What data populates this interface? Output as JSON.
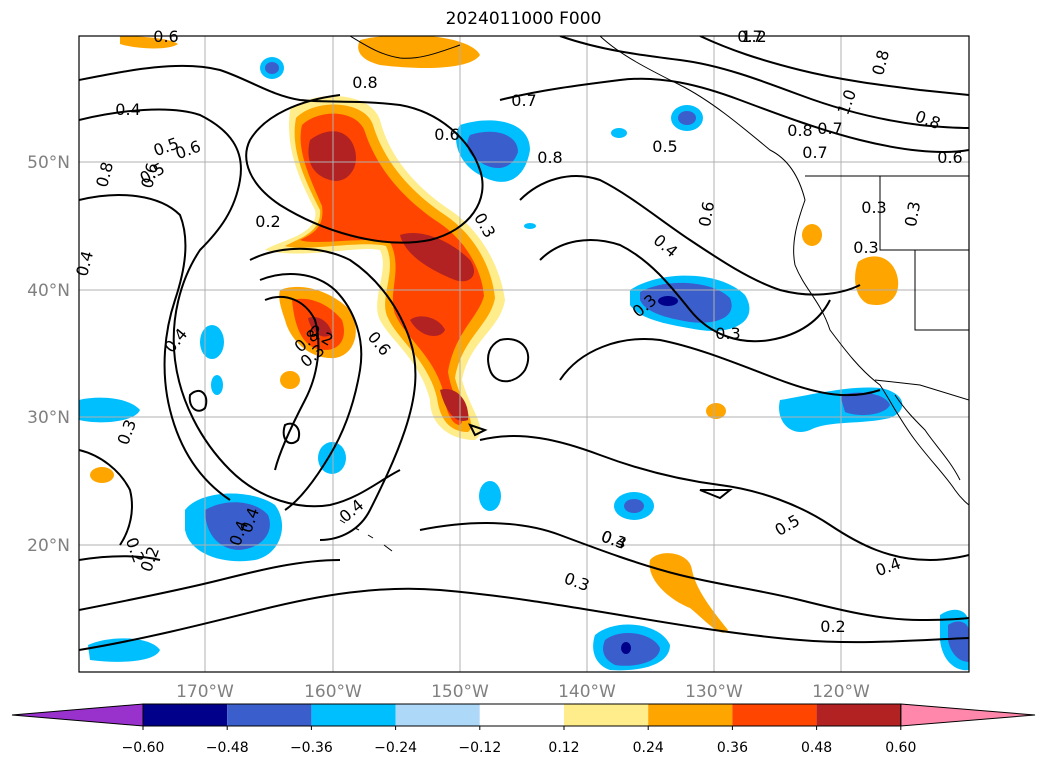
{
  "title": "2024011000 F000",
  "lat_labels": [
    "50°N",
    "40°N",
    "30°N",
    "20°N"
  ],
  "lon_labels": [
    "170°W",
    "160°W",
    "150°W",
    "140°W",
    "130°W",
    "120°W"
  ],
  "colorbar": {
    "colors": [
      "#9932cc",
      "#00008b",
      "#3a5fcd",
      "#00bfff",
      "#add8f7",
      "#ffffff",
      "#ffec8b",
      "#ffa500",
      "#ff4500",
      "#b22222",
      "#ff87ab"
    ],
    "tick_labels": [
      "−0.60",
      "−0.48",
      "−0.36",
      "−0.24",
      "−0.12",
      "0.12",
      "0.24",
      "0.36",
      "0.48",
      "0.60"
    ]
  },
  "contour_labels": [
    "0.6",
    "0.4",
    "0.7",
    "0.8",
    "0.5",
    "0.6",
    "0.5",
    "0.8",
    "0.7",
    "0.6",
    "0.8",
    "0.6",
    "0.8",
    "0.7",
    "1.2",
    "0.8",
    "1.0",
    "0.8",
    "0.7",
    "0.5",
    "0.6",
    "0.4",
    "0.6",
    "0.3",
    "0.3",
    "0.2",
    "0.4",
    "0.3",
    "0.2",
    "0.6",
    "0.8",
    "0.3",
    "0.4",
    "0.3",
    "0.4",
    "0.3",
    "0.2",
    "0.4",
    "0.2",
    "0.3",
    "0.5",
    "0.4",
    "0.4",
    "0.4",
    "0.3",
    "0.2",
    "0.3",
    "0.3"
  ]
}
